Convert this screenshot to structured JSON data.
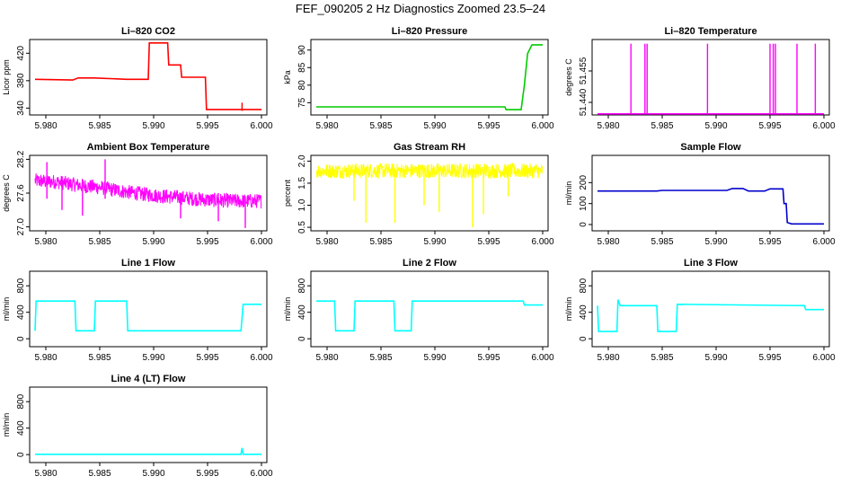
{
  "page": {
    "title": "FEF_090205  2 Hz Diagnostics Zoomed 23.5–24"
  },
  "colors": {
    "red": "#ff0000",
    "green": "#00cc00",
    "magenta": "#ff00ff",
    "yellow": "#ffff00",
    "blue": "#0000cc",
    "cyan": "#00ffff"
  },
  "chart_data": [
    {
      "type": "line",
      "title": "Li–820 CO2",
      "ylabel": "Licor ppm",
      "xlabel": "",
      "xlim": [
        5.9785,
        6.0005
      ],
      "ylim": [
        330,
        440
      ],
      "xticks": [
        "5.980",
        "5.985",
        "5.990",
        "5.995",
        "6.000"
      ],
      "yticks": [
        "340",
        "380",
        "420"
      ],
      "color": "red",
      "series": [
        {
          "x": [
            5.979,
            5.9825,
            5.983,
            5.9845,
            5.9875,
            5.9895,
            5.9896,
            5.9913,
            5.9914,
            5.9925,
            5.9926,
            5.9948,
            5.9949,
            6.0
          ],
          "y": [
            382,
            381,
            384,
            384,
            382,
            382,
            435,
            435,
            403,
            403,
            385,
            385,
            338,
            338
          ]
        }
      ],
      "spikes": [
        {
          "x": 5.9982,
          "y0": 336,
          "y1": 348
        }
      ]
    },
    {
      "type": "line",
      "title": "Li–820 Pressure",
      "ylabel": "kPa",
      "xlabel": "",
      "xlim": [
        5.9785,
        6.0005
      ],
      "ylim": [
        71.5,
        93
      ],
      "xticks": [
        "5.980",
        "5.985",
        "5.990",
        "5.995",
        "6.000"
      ],
      "yticks": [
        "75",
        "80",
        "85",
        "90"
      ],
      "color": "green",
      "series": [
        {
          "x": [
            5.979,
            5.9965,
            5.9966,
            5.998,
            5.9983,
            5.9986,
            5.999,
            6.0
          ],
          "y": [
            73.8,
            73.8,
            73.0,
            73.0,
            80,
            89,
            91.5,
            91.5
          ]
        }
      ]
    },
    {
      "type": "line",
      "title": "Li–820 Temperature",
      "ylabel": "degrees C",
      "xlabel": "",
      "xlim": [
        5.9785,
        6.0005
      ],
      "ylim": [
        51.434,
        51.47
      ],
      "xticks": [
        "5.980",
        "5.985",
        "5.990",
        "5.995",
        "6.000"
      ],
      "yticks": [
        "51.440",
        "51.455"
      ],
      "color": "magenta",
      "series": [
        {
          "x": [
            5.979,
            6.0
          ],
          "y": [
            51.4345,
            51.4345
          ]
        }
      ],
      "spikes": [
        {
          "x": 5.9821,
          "y0": 51.4345,
          "y1": 51.468
        },
        {
          "x": 5.9834,
          "y0": 51.4345,
          "y1": 51.468
        },
        {
          "x": 5.9836,
          "y0": 51.4345,
          "y1": 51.468
        },
        {
          "x": 5.9892,
          "y0": 51.4345,
          "y1": 51.468
        },
        {
          "x": 5.995,
          "y0": 51.4345,
          "y1": 51.468
        },
        {
          "x": 5.9953,
          "y0": 51.4345,
          "y1": 51.468
        },
        {
          "x": 5.9955,
          "y0": 51.4345,
          "y1": 51.468
        },
        {
          "x": 5.9975,
          "y0": 51.4345,
          "y1": 51.468
        },
        {
          "x": 5.9992,
          "y0": 51.4345,
          "y1": 51.468
        }
      ]
    },
    {
      "type": "line",
      "title": "Ambient Box Temperature",
      "ylabel": "degrees C",
      "xlabel": "",
      "xlim": [
        5.9785,
        6.0005
      ],
      "ylim": [
        26.93,
        28.27
      ],
      "xticks": [
        "5.980",
        "5.985",
        "5.990",
        "5.995",
        "6.000"
      ],
      "yticks": [
        "27.0",
        "27.6",
        "28.2"
      ],
      "color": "magenta",
      "series": [
        {
          "x": [
            5.979,
            5.981,
            5.983,
            5.985,
            5.9875,
            5.99,
            5.9925,
            5.995,
            5.9975,
            6.0
          ],
          "y": [
            27.82,
            27.8,
            27.74,
            27.7,
            27.62,
            27.56,
            27.52,
            27.48,
            27.46,
            27.46
          ]
        }
      ],
      "noise": {
        "amplitude": 0.13
      },
      "spikes": [
        {
          "x": 5.9801,
          "y0": 27.5,
          "y1": 28.15
        },
        {
          "x": 5.9815,
          "y0": 27.3,
          "y1": 27.9
        },
        {
          "x": 5.9834,
          "y0": 27.2,
          "y1": 27.8
        },
        {
          "x": 5.9855,
          "y0": 27.5,
          "y1": 28.2
        },
        {
          "x": 5.9925,
          "y0": 27.15,
          "y1": 27.6
        },
        {
          "x": 5.996,
          "y0": 27.1,
          "y1": 27.6
        },
        {
          "x": 5.9985,
          "y0": 26.98,
          "y1": 27.5
        }
      ]
    },
    {
      "type": "line",
      "title": "Gas Stream RH",
      "ylabel": "percent",
      "xlabel": "",
      "xlim": [
        5.9785,
        6.0005
      ],
      "ylim": [
        0.42,
        2.13
      ],
      "xticks": [
        "5.980",
        "5.985",
        "5.990",
        "5.995",
        "6.000"
      ],
      "yticks": [
        "0.5",
        "1.0",
        "1.5",
        "2.0"
      ],
      "color": "yellow",
      "series": [
        {
          "x": [
            5.979,
            6.0
          ],
          "y": [
            1.78,
            1.78
          ]
        }
      ],
      "noise": {
        "amplitude": 0.17
      },
      "spikes": [
        {
          "x": 5.9825,
          "y0": 1.1,
          "y1": 1.8
        },
        {
          "x": 5.9836,
          "y0": 0.6,
          "y1": 1.8
        },
        {
          "x": 5.9863,
          "y0": 0.6,
          "y1": 1.8
        },
        {
          "x": 5.989,
          "y0": 1.0,
          "y1": 1.8
        },
        {
          "x": 5.9904,
          "y0": 0.85,
          "y1": 1.8
        },
        {
          "x": 5.9935,
          "y0": 0.5,
          "y1": 1.8
        },
        {
          "x": 5.9945,
          "y0": 0.8,
          "y1": 1.8
        },
        {
          "x": 5.9968,
          "y0": 1.2,
          "y1": 1.8
        }
      ]
    },
    {
      "type": "line",
      "title": "Sample Flow",
      "ylabel": "ml/min",
      "xlabel": "",
      "xlim": [
        5.9785,
        6.0005
      ],
      "ylim": [
        -30,
        330
      ],
      "xticks": [
        "5.980",
        "5.985",
        "5.990",
        "5.995",
        "6.000"
      ],
      "yticks": [
        "0",
        "100",
        "200"
      ],
      "color": "blue",
      "series": [
        {
          "x": [
            5.979,
            5.9845,
            5.985,
            5.991,
            5.9915,
            5.9925,
            5.993,
            5.9945,
            5.995,
            5.9962,
            5.9963,
            5.9965,
            5.9966,
            5.997,
            6.0
          ],
          "y": [
            160,
            160,
            163,
            163,
            172,
            172,
            160,
            160,
            170,
            170,
            100,
            100,
            10,
            3,
            3
          ]
        }
      ]
    },
    {
      "type": "line",
      "title": "Line 1 Flow",
      "ylabel": "ml/min",
      "xlabel": "",
      "xlim": [
        5.9785,
        6.0005
      ],
      "ylim": [
        -120,
        1020
      ],
      "xticks": [
        "5.980",
        "5.985",
        "5.990",
        "5.995",
        "6.000"
      ],
      "yticks": [
        "0",
        "400",
        "800"
      ],
      "color": "cyan",
      "series": [
        {
          "x": [
            5.979,
            5.9791,
            5.9827,
            5.9828,
            5.9845,
            5.9846,
            5.9875,
            5.9876,
            5.9981,
            5.9983,
            6.0
          ],
          "y": [
            120,
            570,
            570,
            120,
            120,
            570,
            570,
            120,
            120,
            520,
            520
          ]
        }
      ]
    },
    {
      "type": "line",
      "title": "Line 2 Flow",
      "ylabel": "ml/min",
      "xlabel": "",
      "xlim": [
        5.9785,
        6.0005
      ],
      "ylim": [
        -120,
        1020
      ],
      "xticks": [
        "5.980",
        "5.985",
        "5.990",
        "5.995",
        "6.000"
      ],
      "yticks": [
        "0",
        "400",
        "800"
      ],
      "color": "cyan",
      "series": [
        {
          "x": [
            5.979,
            5.9807,
            5.9808,
            5.9825,
            5.9826,
            5.9862,
            5.9863,
            5.9878,
            5.9879,
            5.9982,
            5.9983,
            6.0
          ],
          "y": [
            570,
            570,
            120,
            120,
            570,
            570,
            120,
            120,
            570,
            570,
            510,
            510
          ]
        }
      ]
    },
    {
      "type": "line",
      "title": "Line 3 Flow",
      "ylabel": "ml/min",
      "xlabel": "",
      "xlim": [
        5.9785,
        6.0005
      ],
      "ylim": [
        -120,
        1020
      ],
      "xticks": [
        "5.980",
        "5.985",
        "5.990",
        "5.995",
        "6.000"
      ],
      "yticks": [
        "0",
        "400",
        "800"
      ],
      "color": "cyan",
      "series": [
        {
          "x": [
            5.979,
            5.9791,
            5.9808,
            5.9809,
            5.9811,
            5.9845,
            5.9846,
            5.9863,
            5.9864,
            5.9982,
            5.9983,
            6.0
          ],
          "y": [
            500,
            110,
            110,
            590,
            500,
            500,
            110,
            110,
            520,
            500,
            440,
            440
          ]
        }
      ]
    },
    {
      "type": "line",
      "title": "Line 4 (LT) Flow",
      "ylabel": "ml/min",
      "xlabel": "",
      "xlim": [
        5.9785,
        6.0005
      ],
      "ylim": [
        -120,
        1020
      ],
      "xticks": [
        "5.980",
        "5.985",
        "5.990",
        "5.995",
        "6.000"
      ],
      "yticks": [
        "0",
        "400",
        "800"
      ],
      "color": "cyan",
      "series": [
        {
          "x": [
            5.979,
            5.9981,
            5.9982,
            5.9983,
            6.0
          ],
          "y": [
            5,
            5,
            100,
            5,
            5
          ]
        }
      ]
    }
  ]
}
